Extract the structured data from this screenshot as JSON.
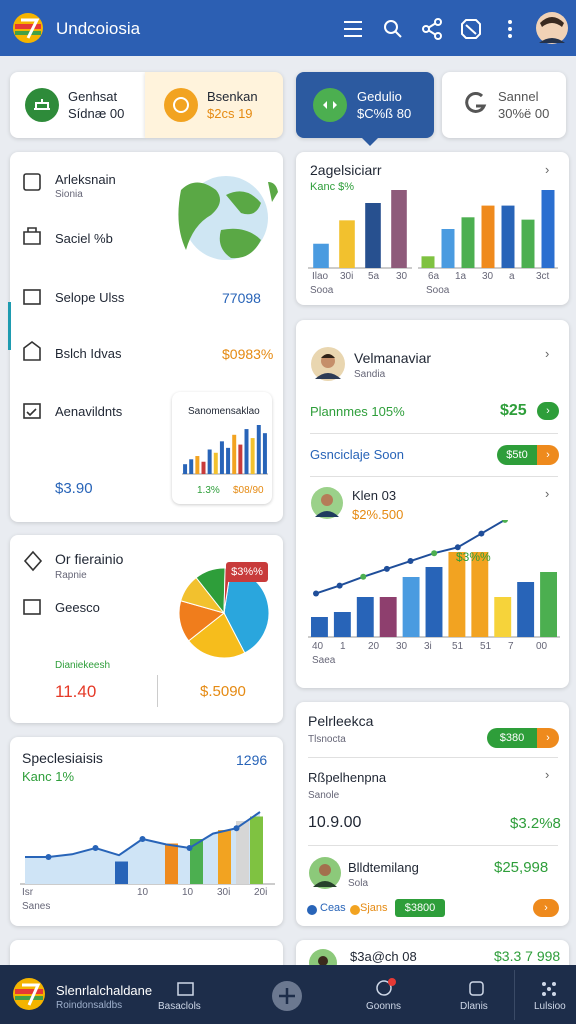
{
  "header": {
    "title": "Undcoiosia"
  },
  "summary": [
    {
      "title": "Genhsat",
      "value": "Sídnæ 00"
    },
    {
      "title": "Bsenkan",
      "value": "$2cs 19"
    },
    {
      "title": "Gedulio",
      "value": "$C%ß 80"
    },
    {
      "title": "Sannel",
      "value": "30%ë 00"
    }
  ],
  "card_a": {
    "items": [
      "Arleksnain",
      "Saciel %b",
      "Selope Ulss",
      "Bslch Idvas",
      "Aenavildnts"
    ],
    "subtitle": "Sionia",
    "amount_1": "77098",
    "amount_2": "$0983%",
    "total": "$3.90",
    "mini_title": "Sanomensaklao",
    "mini_labels": [
      "1.3%",
      "$08/90"
    ],
    "mini_bars": [
      12,
      18,
      22,
      15,
      30,
      26,
      40,
      32,
      48,
      36,
      55,
      44,
      60,
      50
    ]
  },
  "card_b": {
    "title": "Or fierainio",
    "subtitle": "Rapnie",
    "item": "Geesco",
    "label": "Dianiekeesh",
    "value_1": "11.40",
    "value_2": "$.5090",
    "tag": "$3%%",
    "pie": [
      40,
      22,
      15,
      10,
      11,
      2
    ]
  },
  "card_c": {
    "title": "Speclesiaisis",
    "subtitle": "Kanc 1%",
    "value": "1296",
    "x_labels": [
      "Isr",
      "10",
      "10",
      "30i",
      "20i"
    ],
    "axis_title": "Sanes",
    "line": [
      30,
      30,
      33,
      40,
      32,
      50,
      44,
      40,
      56,
      62,
      80
    ],
    "bars": [
      25,
      45,
      50,
      60,
      70,
      75
    ]
  },
  "card_e": {
    "title": "2agelsiciarr",
    "subtitle": "Kanc $%",
    "chart_1": [
      28,
      55,
      75,
      90
    ],
    "chart_2": [
      15,
      50,
      65,
      80,
      80,
      62,
      100
    ],
    "labels_1": [
      "Ilao",
      "30i",
      "5a",
      "30"
    ],
    "labels_2": [
      "6a",
      "1a",
      "30",
      "a",
      "3ct"
    ],
    "axis_title_1": "Sooa",
    "axis_title_2": "Sooa"
  },
  "card_f": {
    "name": "Velmanaviar",
    "role": "Sandia",
    "metric": "Plannmes 105%",
    "metric_value": "$25",
    "link": "Gsnciclaje Soon",
    "pill": "$5t0",
    "name_2": "Klen 03",
    "value_2": "$2%.500",
    "tag": "$3%%",
    "bars": [
      20,
      25,
      40,
      40,
      60,
      70,
      85,
      85,
      40,
      55,
      65
    ],
    "line": [
      25,
      33,
      42,
      50,
      58,
      66,
      72,
      86,
      100
    ],
    "x_labels": [
      "40",
      "1",
      "20",
      "30",
      "3i",
      "51",
      "51",
      "7",
      "00"
    ],
    "axis_title": "Saea"
  },
  "card_g": {
    "title": "Pelrleekca",
    "subtitle": "Tlsnocta",
    "pill": "$380",
    "item": "Rßpelhenpna",
    "item_sub": "Sanole",
    "value_1": "10.9.00",
    "value_2": "$3.2%8",
    "name": "Blldtemilang",
    "name_sub": "Sola",
    "value_3": "$25,998",
    "legend": [
      "Ceas",
      "Sjans"
    ],
    "pill_2": "$3800"
  },
  "card_h": {
    "title": "$3a@ch 08",
    "value": "$3.3 7 998"
  },
  "nav": {
    "title": "Slenrlalchaldane",
    "subtitle": "Roindonsaldbs",
    "items": [
      "Basaclols",
      "Goonns",
      "Dlanis",
      "Lulsioo"
    ]
  }
}
